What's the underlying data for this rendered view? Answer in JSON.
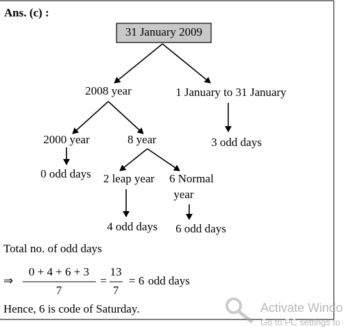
{
  "header": {
    "title": "Ans. (c) :"
  },
  "nodes": [
    {
      "label": "31 January 2009"
    },
    {
      "label": "2008 year"
    },
    {
      "label": "1 January to 31 January"
    },
    {
      "label": "2000 year"
    },
    {
      "label": "8 year"
    },
    {
      "label": "3 odd days"
    },
    {
      "label": "0 odd days"
    },
    {
      "label": "2 leap year"
    },
    {
      "lines": [
        "6 Normal",
        "year"
      ]
    },
    {
      "label": "4 odd days"
    },
    {
      "label": "6 odd days"
    }
  ],
  "text": {
    "total": "Total no. of odd days",
    "equation": {
      "arrow": "⇒",
      "numerator": "0 + 4 + 6 + 3",
      "denominator": "7",
      "equals1": "=",
      "numerator2": "13",
      "denominator2": "7",
      "equals2": "=",
      "result": "6",
      "unit": "odd days"
    },
    "conclusion": "Hence, 6 is code of Saturday."
  },
  "watermark": {
    "title": "Activate Windo",
    "subtitle": "Go to PC settings to"
  }
}
